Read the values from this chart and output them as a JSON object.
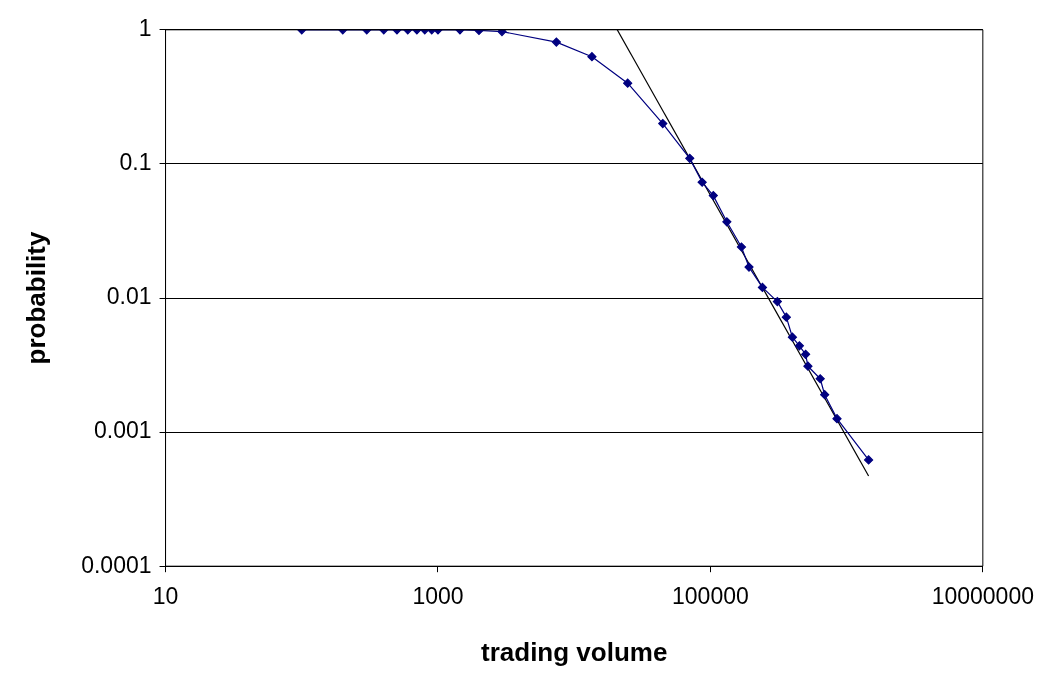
{
  "chart_data": {
    "type": "line",
    "xlabel": "trading volume",
    "ylabel": "probability",
    "log": "xy",
    "grid": "y",
    "legend": false,
    "xlim": [
      10,
      10000000
    ],
    "xticks": [
      10,
      1000,
      100000,
      10000000
    ],
    "ylim": [
      0.0001,
      1
    ],
    "yticks": [
      0.0001,
      0.001,
      0.01,
      0.1,
      1
    ],
    "series": [
      {
        "color": "#000080",
        "marker": "diamond",
        "x": [
          100,
          200,
          300,
          400,
          500,
          600,
          700,
          800,
          900,
          1000,
          1450,
          2000,
          2950,
          7400,
          13500,
          24700,
          44700,
          70500,
          87000,
          105000,
          132000,
          169000,
          192000,
          241000,
          310000,
          361000,
          400000,
          450000,
          500000,
          520000,
          640000,
          690000,
          850000,
          1450000
        ],
        "values": [
          1,
          1,
          1,
          1,
          1,
          1,
          1,
          1,
          1,
          1,
          1,
          0.99,
          0.97,
          0.81,
          0.63,
          0.4,
          0.2,
          0.11,
          0.073,
          0.058,
          0.037,
          0.024,
          0.017,
          0.012,
          0.0094,
          0.0072,
          0.0051,
          0.0044,
          0.0038,
          0.0031,
          0.0025,
          0.0019,
          0.00126,
          0.00062
        ]
      },
      {
        "color": "#000000",
        "marker": "none",
        "x": [
          20700,
          1450000
        ],
        "values": [
          1,
          0.00047
        ]
      }
    ]
  }
}
